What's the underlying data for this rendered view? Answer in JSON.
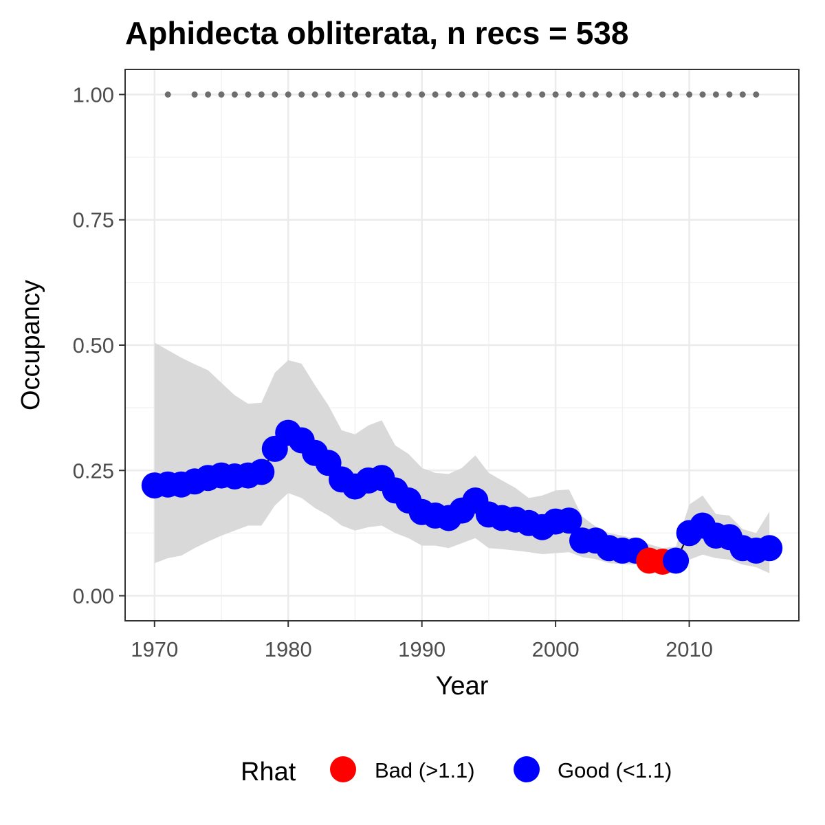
{
  "chart_data": {
    "type": "line",
    "title": "Aphidecta obliterata, n recs = 538",
    "xlabel": "Year",
    "ylabel": "Occupancy",
    "xlim": [
      1967.8,
      2018.2
    ],
    "ylim": [
      -0.05,
      1.05
    ],
    "x_ticks": [
      1970,
      1980,
      1990,
      2000,
      2010
    ],
    "x_tick_labels": [
      "1970",
      "1980",
      "1990",
      "2000",
      "2010"
    ],
    "y_ticks": [
      0,
      0.25,
      0.5,
      0.75,
      1.0
    ],
    "y_tick_labels": [
      "0.00",
      "0.25",
      "0.50",
      "0.75",
      "1.00"
    ],
    "grid": true,
    "legend": {
      "title": "Rhat",
      "position": "bottom",
      "entries": [
        {
          "label": "Bad (>1.1)",
          "color": "#ff0000"
        },
        {
          "label": "Good (<1.1)",
          "color": "#0000ff"
        }
      ]
    },
    "colors": {
      "good": "#0000ff",
      "bad": "#ff0000",
      "ribbon": "#d9d9d9",
      "record_dots": "#6e6e6e"
    },
    "x": [
      1970,
      1971,
      1972,
      1973,
      1974,
      1975,
      1976,
      1977,
      1978,
      1979,
      1980,
      1981,
      1982,
      1983,
      1984,
      1985,
      1986,
      1987,
      1988,
      1989,
      1990,
      1991,
      1992,
      1993,
      1994,
      1995,
      1996,
      1997,
      1998,
      1999,
      2000,
      2001,
      2002,
      2003,
      2004,
      2005,
      2006,
      2007,
      2008,
      2009,
      2010,
      2011,
      2012,
      2013,
      2014,
      2015,
      2016
    ],
    "occupancy": [
      0.22,
      0.222,
      0.222,
      0.228,
      0.235,
      0.24,
      0.238,
      0.24,
      0.247,
      0.293,
      0.325,
      0.31,
      0.285,
      0.265,
      0.232,
      0.218,
      0.23,
      0.235,
      0.21,
      0.19,
      0.167,
      0.16,
      0.155,
      0.17,
      0.19,
      0.162,
      0.155,
      0.152,
      0.145,
      0.137,
      0.148,
      0.15,
      0.11,
      0.11,
      0.095,
      0.09,
      0.09,
      0.07,
      0.068,
      0.07,
      0.125,
      0.14,
      0.12,
      0.117,
      0.095,
      0.09,
      0.095
    ],
    "lower": [
      0.065,
      0.075,
      0.08,
      0.095,
      0.108,
      0.12,
      0.13,
      0.14,
      0.14,
      0.18,
      0.205,
      0.195,
      0.175,
      0.16,
      0.14,
      0.13,
      0.137,
      0.14,
      0.125,
      0.115,
      0.1,
      0.1,
      0.095,
      0.105,
      0.115,
      0.095,
      0.093,
      0.09,
      0.087,
      0.083,
      0.085,
      0.087,
      0.077,
      0.073,
      0.065,
      0.063,
      0.062,
      0.058,
      0.055,
      0.06,
      0.072,
      0.082,
      0.075,
      0.072,
      0.062,
      0.057,
      0.045
    ],
    "upper": [
      0.505,
      0.49,
      0.475,
      0.462,
      0.45,
      0.425,
      0.4,
      0.383,
      0.385,
      0.445,
      0.47,
      0.463,
      0.42,
      0.38,
      0.33,
      0.322,
      0.34,
      0.35,
      0.3,
      0.283,
      0.255,
      0.245,
      0.243,
      0.255,
      0.28,
      0.245,
      0.23,
      0.215,
      0.195,
      0.2,
      0.21,
      0.212,
      0.158,
      0.138,
      0.125,
      0.12,
      0.113,
      0.103,
      0.095,
      0.098,
      0.182,
      0.2,
      0.163,
      0.16,
      0.133,
      0.125,
      0.168
    ],
    "rhat_status": [
      "good",
      "good",
      "good",
      "good",
      "good",
      "good",
      "good",
      "good",
      "good",
      "good",
      "good",
      "good",
      "good",
      "good",
      "good",
      "good",
      "good",
      "good",
      "good",
      "good",
      "good",
      "good",
      "good",
      "good",
      "good",
      "good",
      "good",
      "good",
      "good",
      "good",
      "good",
      "good",
      "good",
      "good",
      "good",
      "good",
      "good",
      "bad",
      "bad",
      "good",
      "good",
      "good",
      "good",
      "good",
      "good",
      "good",
      "good"
    ],
    "record_years": [
      1971,
      1973,
      1974,
      1975,
      1976,
      1977,
      1978,
      1979,
      1980,
      1981,
      1982,
      1983,
      1984,
      1985,
      1986,
      1987,
      1988,
      1989,
      1990,
      1991,
      1992,
      1993,
      1994,
      1995,
      1996,
      1997,
      1998,
      1999,
      2000,
      2001,
      2002,
      2003,
      2004,
      2005,
      2006,
      2007,
      2008,
      2009,
      2010,
      2011,
      2012,
      2013,
      2014,
      2015
    ],
    "record_value": 1.0
  }
}
